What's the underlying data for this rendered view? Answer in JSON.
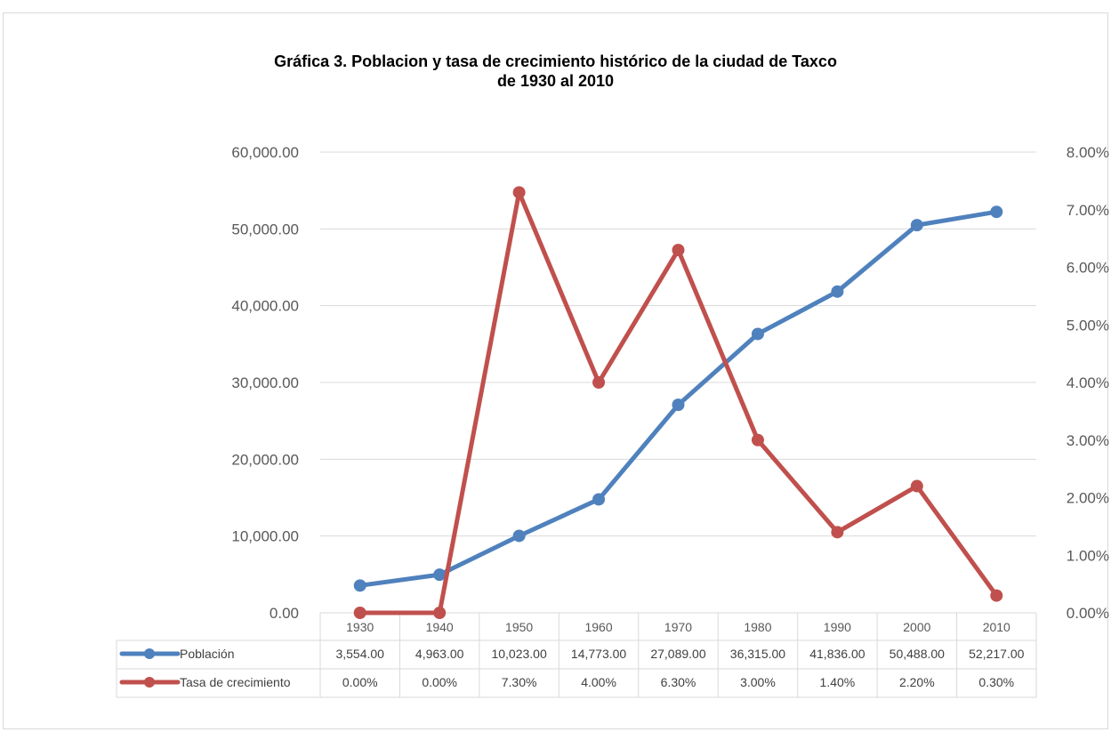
{
  "chart_data": {
    "type": "line",
    "title_line1": "Gráfica 3. Poblacion y tasa de crecimiento histórico de la ciudad de  Taxco",
    "title_line2": "de 1930 al 2010",
    "categories": [
      "1930",
      "1940",
      "1950",
      "1960",
      "1970",
      "1980",
      "1990",
      "2000",
      "2010"
    ],
    "y_left": {
      "ylim": [
        0,
        60000
      ],
      "ticks": [
        0,
        10000,
        20000,
        30000,
        40000,
        50000,
        60000
      ],
      "tick_labels": [
        "0.00",
        "10,000.00",
        "20,000.00",
        "30,000.00",
        "40,000.00",
        "50,000.00",
        "60,000.00"
      ]
    },
    "y_right": {
      "ylim": [
        0,
        8
      ],
      "ticks": [
        0,
        1,
        2,
        3,
        4,
        5,
        6,
        7,
        8
      ],
      "tick_labels": [
        "0.00%",
        "1.00%",
        "2.00%",
        "3.00%",
        "4.00%",
        "5.00%",
        "6.00%",
        "7.00%",
        "8.00%"
      ]
    },
    "series": [
      {
        "name": "Población",
        "axis": "left",
        "color": "#4f81bd",
        "values": [
          3554,
          4963,
          10023,
          14773,
          27089,
          36315,
          41836,
          50488,
          52217
        ],
        "labels": [
          "3,554.00",
          "4,963.00",
          "10,023.00",
          "14,773.00",
          "27,089.00",
          "36,315.00",
          "41,836.00",
          "50,488.00",
          "52,217.00"
        ]
      },
      {
        "name": "Tasa de crecimiento",
        "axis": "right",
        "color": "#c0504d",
        "values": [
          0.0,
          0.0,
          7.3,
          4.0,
          6.3,
          3.0,
          1.4,
          2.2,
          0.3
        ],
        "labels": [
          "0.00%",
          "0.00%",
          "7.30%",
          "4.00%",
          "6.30%",
          "3.00%",
          "1.40%",
          "2.20%",
          "0.30%"
        ]
      }
    ],
    "grid": true,
    "legend": "data-table"
  }
}
